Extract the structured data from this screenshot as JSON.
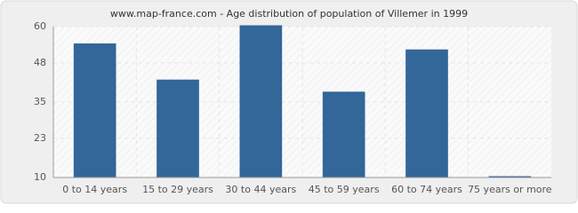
{
  "chart_data": {
    "type": "bar",
    "title": "www.map-france.com - Age distribution of population of Villemer in 1999",
    "categories": [
      "0 to 14 years",
      "15 to 29 years",
      "30 to 44 years",
      "45 to 59 years",
      "60 to 74 years",
      "75 years or more"
    ],
    "values": [
      54,
      42,
      60,
      38,
      52,
      10
    ],
    "color": "#336699",
    "ylim": [
      10,
      60
    ],
    "yticks": [
      10,
      23,
      35,
      48,
      60
    ],
    "grid": true
  }
}
